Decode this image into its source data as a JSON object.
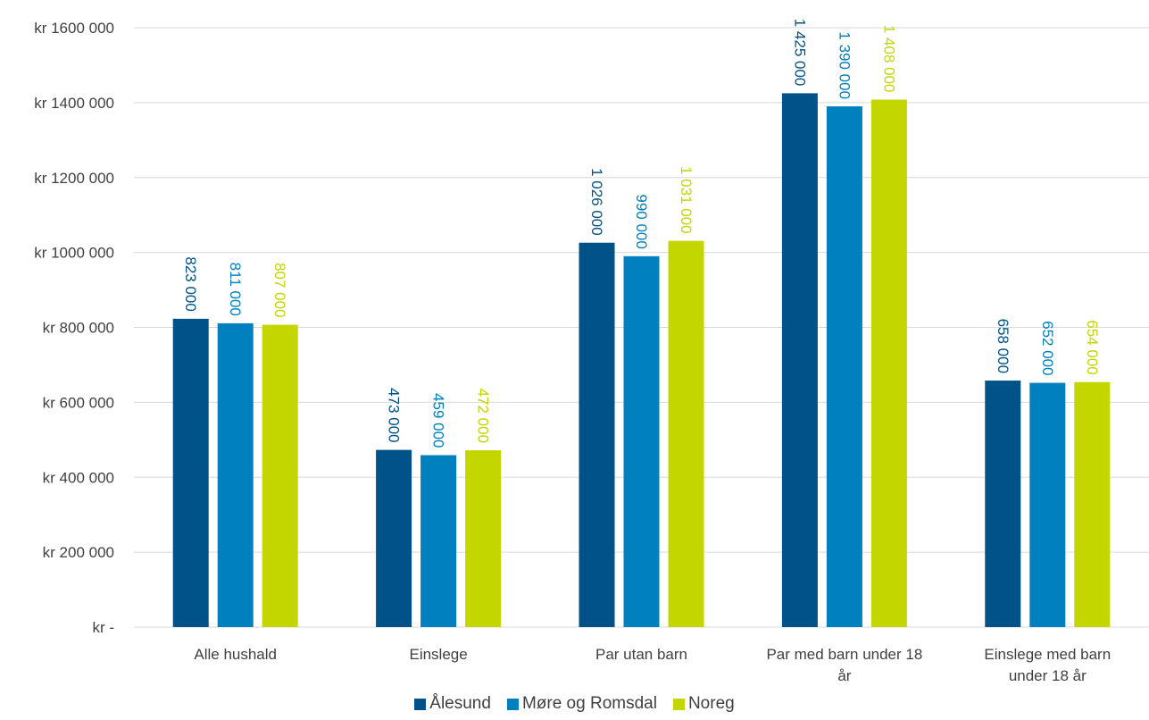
{
  "chart_data": {
    "type": "bar",
    "categories": [
      [
        "Alle hushald"
      ],
      [
        "Einslege"
      ],
      [
        "Par utan barn"
      ],
      [
        "Par med barn under 18",
        "år"
      ],
      [
        "Einslege med barn",
        "under 18 år"
      ]
    ],
    "series": [
      {
        "name": "Ålesund",
        "color": "#005288",
        "values": [
          823000,
          473000,
          1026000,
          1425000,
          658000
        ],
        "labels": [
          "823 000",
          "473 000",
          "1 026 000",
          "1 425 000",
          "658 000"
        ]
      },
      {
        "name": "Møre og Romsdal",
        "color": "#0080BE",
        "values": [
          811000,
          459000,
          990000,
          1390000,
          652000
        ],
        "labels": [
          "811 000",
          "459 000",
          "990 000",
          "1 390 000",
          "652 000"
        ]
      },
      {
        "name": "Noreg",
        "color": "#C4D600",
        "values": [
          807000,
          472000,
          1031000,
          1408000,
          654000
        ],
        "labels": [
          "807 000",
          "472 000",
          "1 031 000",
          "1 408 000",
          "654 000"
        ]
      }
    ],
    "yticks": [
      0,
      200000,
      400000,
      600000,
      800000,
      1000000,
      1200000,
      1400000,
      1600000
    ],
    "ytick_labels": [
      "kr -",
      "kr 200 000",
      "kr 400 000",
      "kr 600 000",
      "kr 800 000",
      "kr 1000 000",
      "kr 1200 000",
      "kr 1400 000",
      "kr 1600 000"
    ],
    "ylim": [
      0,
      1600000
    ],
    "grid": true,
    "legend_position": "bottom"
  }
}
